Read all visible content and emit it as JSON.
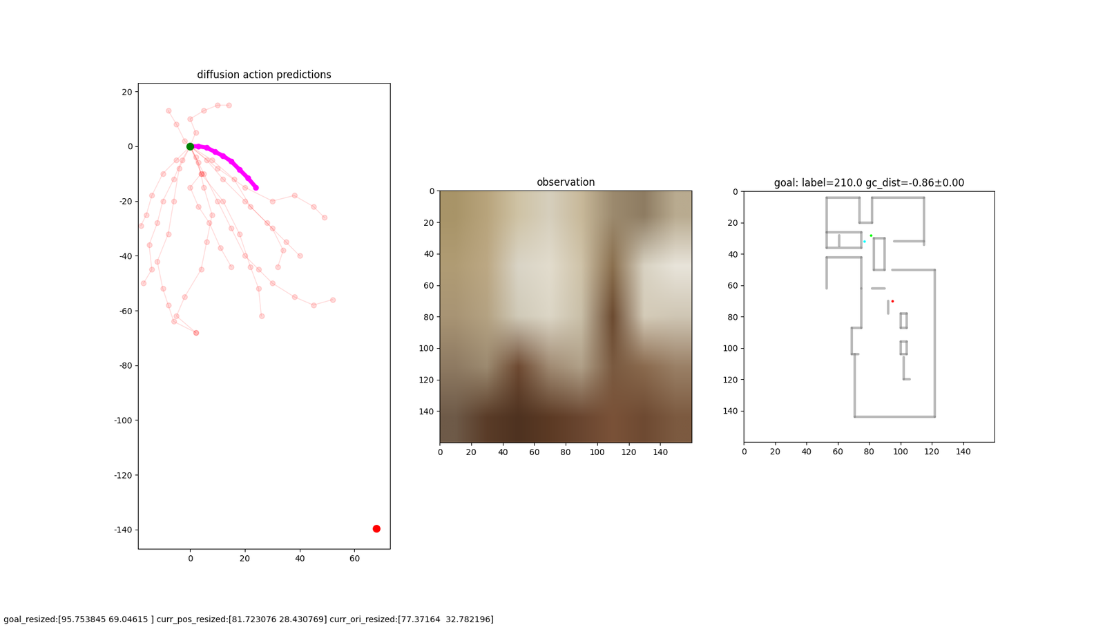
{
  "chart_data": [
    {
      "type": "scatter",
      "title": "diffusion action predictions",
      "xlim": [
        -19,
        73
      ],
      "ylim": [
        -147,
        23
      ],
      "xticks": [
        0,
        20,
        40,
        60
      ],
      "yticks": [
        -140,
        -120,
        -100,
        -80,
        -60,
        -40,
        -20,
        0,
        20
      ],
      "samples": {
        "color": "red",
        "marker": "o",
        "line_style": "solid",
        "paths": [
          [
            [
              0,
              0
            ],
            [
              -3,
              -5
            ],
            [
              -6,
              -12
            ],
            [
              -10,
              -20
            ],
            [
              -12,
              -28
            ],
            [
              -15,
              -36
            ],
            [
              -14,
              -45
            ],
            [
              -17,
              -50
            ]
          ],
          [
            [
              0,
              0
            ],
            [
              3,
              -6
            ],
            [
              5,
              -15
            ],
            [
              8,
              -25
            ],
            [
              6,
              -35
            ],
            [
              4,
              -45
            ],
            [
              -2,
              -55
            ],
            [
              -5,
              -62
            ],
            [
              2,
              -68
            ]
          ],
          [
            [
              0,
              0
            ],
            [
              6,
              -5
            ],
            [
              12,
              -12
            ],
            [
              20,
              -20
            ],
            [
              28,
              -28
            ],
            [
              35,
              -35
            ],
            [
              40,
              -40
            ]
          ],
          [
            [
              0,
              0
            ],
            [
              10,
              -8
            ],
            [
              20,
              -15
            ],
            [
              30,
              -20
            ],
            [
              38,
              -18
            ],
            [
              45,
              -22
            ],
            [
              49,
              -26
            ]
          ],
          [
            [
              0,
              0
            ],
            [
              5,
              -10
            ],
            [
              10,
              -20
            ],
            [
              15,
              -30
            ],
            [
              20,
              -40
            ],
            [
              25,
              -45
            ],
            [
              30,
              -50
            ],
            [
              38,
              -55
            ],
            [
              45,
              -58
            ],
            [
              52,
              -56
            ]
          ],
          [
            [
              0,
              0
            ],
            [
              2,
              5
            ],
            [
              0,
              10
            ],
            [
              5,
              13
            ],
            [
              10,
              15
            ],
            [
              14,
              15
            ]
          ],
          [
            [
              0,
              0
            ],
            [
              -5,
              -5
            ],
            [
              -10,
              -10
            ],
            [
              -14,
              -18
            ],
            [
              -16,
              -25
            ],
            [
              -18,
              -29
            ]
          ],
          [
            [
              0,
              0
            ],
            [
              -2,
              2
            ],
            [
              -5,
              8
            ],
            [
              -8,
              13
            ]
          ],
          [
            [
              0,
              0
            ],
            [
              4,
              -10
            ],
            [
              12,
              -20
            ],
            [
              18,
              -32
            ],
            [
              22,
              -44
            ],
            [
              25,
              -52
            ],
            [
              26,
              -62
            ]
          ],
          [
            [
              0,
              0
            ],
            [
              -4,
              -8
            ],
            [
              -6,
              -20
            ],
            [
              -8,
              -32
            ],
            [
              -12,
              -42
            ],
            [
              -10,
              -52
            ],
            [
              -8,
              -58
            ],
            [
              -6,
              -64
            ],
            [
              2,
              -68
            ]
          ],
          [
            [
              0,
              0
            ],
            [
              8,
              -5
            ],
            [
              16,
              -12
            ],
            [
              22,
              -22
            ],
            [
              30,
              -30
            ],
            [
              34,
              -38
            ],
            [
              32,
              -44
            ]
          ],
          [
            [
              0,
              0
            ],
            [
              2,
              -4
            ],
            [
              4,
              -10
            ],
            [
              0,
              -15
            ],
            [
              3,
              -22
            ],
            [
              7,
              -28
            ],
            [
              11,
              -37
            ],
            [
              15,
              -44
            ]
          ]
        ]
      },
      "path": {
        "color": "magenta",
        "marker": "o",
        "x": [
          0,
          3,
          6,
          9,
          12,
          15,
          18,
          21,
          24
        ],
        "y": [
          0,
          0,
          -0.5,
          -2,
          -3.5,
          -5.5,
          -8.5,
          -11.5,
          -15
        ]
      },
      "start": {
        "color": "green",
        "x": 0,
        "y": 0
      },
      "goal": {
        "color": "red",
        "x": 68,
        "y": -139.5
      }
    },
    {
      "type": "image",
      "title": "observation",
      "xlim": [
        0,
        160
      ],
      "ylim": [
        160,
        0
      ],
      "xticks": [
        0,
        20,
        40,
        60,
        80,
        100,
        120,
        140
      ],
      "yticks": [
        0,
        20,
        40,
        60,
        80,
        100,
        120,
        140
      ],
      "cells": [
        [
          "#a89468",
          "#b8a47c",
          "#cfc3a5",
          "#d6cfbd",
          "#c8b99a",
          "#9c8a6e",
          "#8e7c62",
          "#b9ab90"
        ],
        [
          "#b09c74",
          "#bca884",
          "#d9d4c6",
          "#e2dccd",
          "#cfc3a9",
          "#8a6f4e",
          "#d8d2c2",
          "#e8e4da"
        ],
        [
          "#a89474",
          "#b4a282",
          "#d0cab8",
          "#dcd6c6",
          "#c9bfa8",
          "#6b4a30",
          "#d4cbb8",
          "#cfc6b4"
        ],
        [
          "#8e7a62",
          "#9c8a70",
          "#6e4a32",
          "#a08a72",
          "#b0a088",
          "#7a5a40",
          "#8a6a4e",
          "#9a8066"
        ],
        [
          "#6e5a48",
          "#5a3c28",
          "#4e3220",
          "#5c3a24",
          "#6a4630",
          "#7a5238",
          "#6e4a32",
          "#7c5a40"
        ]
      ]
    },
    {
      "type": "map",
      "title": "goal: label=210.0 gc_dist=-0.86±0.00",
      "xlim": [
        0,
        160
      ],
      "ylim": [
        160,
        0
      ],
      "xticks": [
        0,
        20,
        40,
        60,
        80,
        100,
        120,
        140
      ],
      "yticks": [
        0,
        20,
        40,
        60,
        80,
        100,
        120,
        140
      ],
      "color": "gray",
      "walls": [
        [
          53,
          4,
          74,
          4
        ],
        [
          74,
          4,
          74,
          20
        ],
        [
          74,
          20,
          82,
          20
        ],
        [
          82,
          20,
          82,
          4
        ],
        [
          82,
          4,
          115,
          4
        ],
        [
          115,
          4,
          115,
          34
        ],
        [
          53,
          4,
          53,
          26
        ],
        [
          53,
          26,
          75,
          26
        ],
        [
          53,
          26,
          53,
          36
        ],
        [
          53,
          36,
          75,
          36
        ],
        [
          75,
          26,
          75,
          36
        ],
        [
          61,
          28,
          61,
          35
        ],
        [
          96,
          32,
          115,
          32
        ],
        [
          83,
          30,
          90,
          30
        ],
        [
          83,
          30,
          83,
          50
        ],
        [
          83,
          50,
          90,
          50
        ],
        [
          90,
          30,
          90,
          50
        ],
        [
          53,
          42,
          75,
          42
        ],
        [
          53,
          42,
          53,
          62
        ],
        [
          75,
          42,
          75,
          62
        ],
        [
          82,
          62,
          90,
          62
        ],
        [
          95,
          50,
          122,
          50
        ],
        [
          122,
          50,
          122,
          144
        ],
        [
          71,
          144,
          122,
          144
        ],
        [
          71,
          104,
          71,
          144
        ],
        [
          69,
          87,
          69,
          104
        ],
        [
          69,
          87,
          75,
          87
        ],
        [
          75,
          62,
          75,
          87
        ],
        [
          69,
          104,
          73,
          104
        ],
        [
          92,
          70,
          92,
          78
        ],
        [
          100,
          78,
          104,
          78
        ],
        [
          100,
          78,
          100,
          87
        ],
        [
          100,
          87,
          104,
          87
        ],
        [
          104,
          78,
          104,
          87
        ],
        [
          100,
          96,
          104,
          96
        ],
        [
          100,
          96,
          100,
          104
        ],
        [
          100,
          104,
          104,
          104
        ],
        [
          104,
          96,
          104,
          104
        ],
        [
          102,
          106,
          102,
          120
        ],
        [
          102,
          120,
          106,
          120
        ]
      ],
      "points": [
        {
          "x": 77,
          "y": 32,
          "color": "cyan"
        },
        {
          "x": 81,
          "y": 28,
          "color": "lime"
        },
        {
          "x": 95,
          "y": 70,
          "color": "red"
        }
      ]
    }
  ],
  "footer_text": "goal_resized:[95.753845 69.04615 ] curr_pos_resized:[81.723076 28.430769] curr_ori_resized:[77.37164  32.782196]"
}
